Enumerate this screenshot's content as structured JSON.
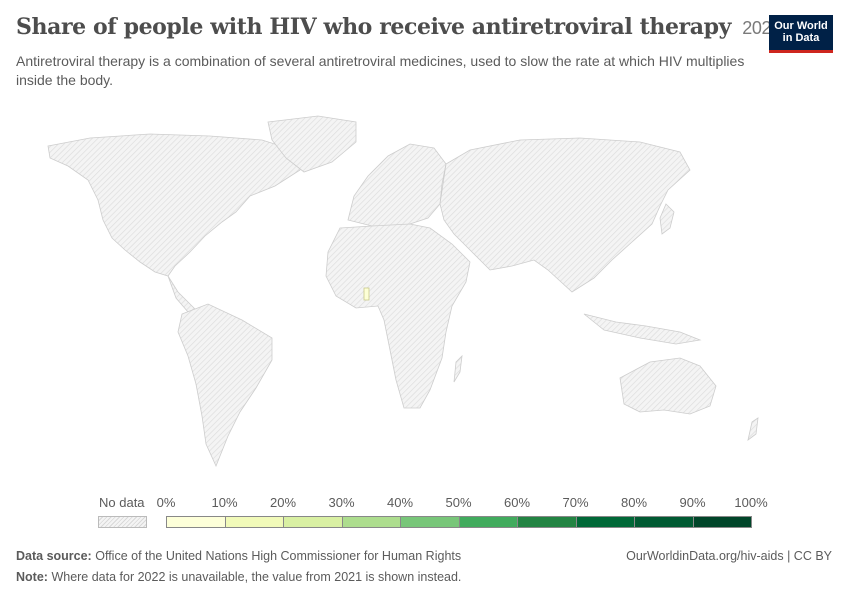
{
  "header": {
    "title": "Share of people with HIV who receive antiretroviral therapy",
    "year": "2022",
    "subtitle": "Antiretroviral therapy is a combination of several antiretroviral medicines, used to slow the rate at which HIV multiplies inside the body."
  },
  "logo": {
    "line1": "Our World",
    "line2": "in Data"
  },
  "map": {
    "highlighted_region_color": "#fdffd6",
    "no_data_fill": "#f2f2f2",
    "border_color": "#cfcfcf"
  },
  "legend": {
    "no_data_label": "No data",
    "ticks": [
      "0%",
      "10%",
      "20%",
      "30%",
      "40%",
      "50%",
      "60%",
      "70%",
      "80%",
      "90%",
      "100%"
    ],
    "colors": [
      "#fdffd9",
      "#f1fab9",
      "#d9f0a3",
      "#addd8e",
      "#78c679",
      "#41ab5d",
      "#238443",
      "#006837",
      "#005a32",
      "#004529"
    ]
  },
  "footer": {
    "source_label": "Data source:",
    "source_text": "Office of the United Nations High Commissioner for Human Rights",
    "note_label": "Note:",
    "note_text": "Where data for 2022 is unavailable, the value from 2021 is shown instead.",
    "link": "OurWorldinData.org/hiv-aids | CC BY"
  }
}
